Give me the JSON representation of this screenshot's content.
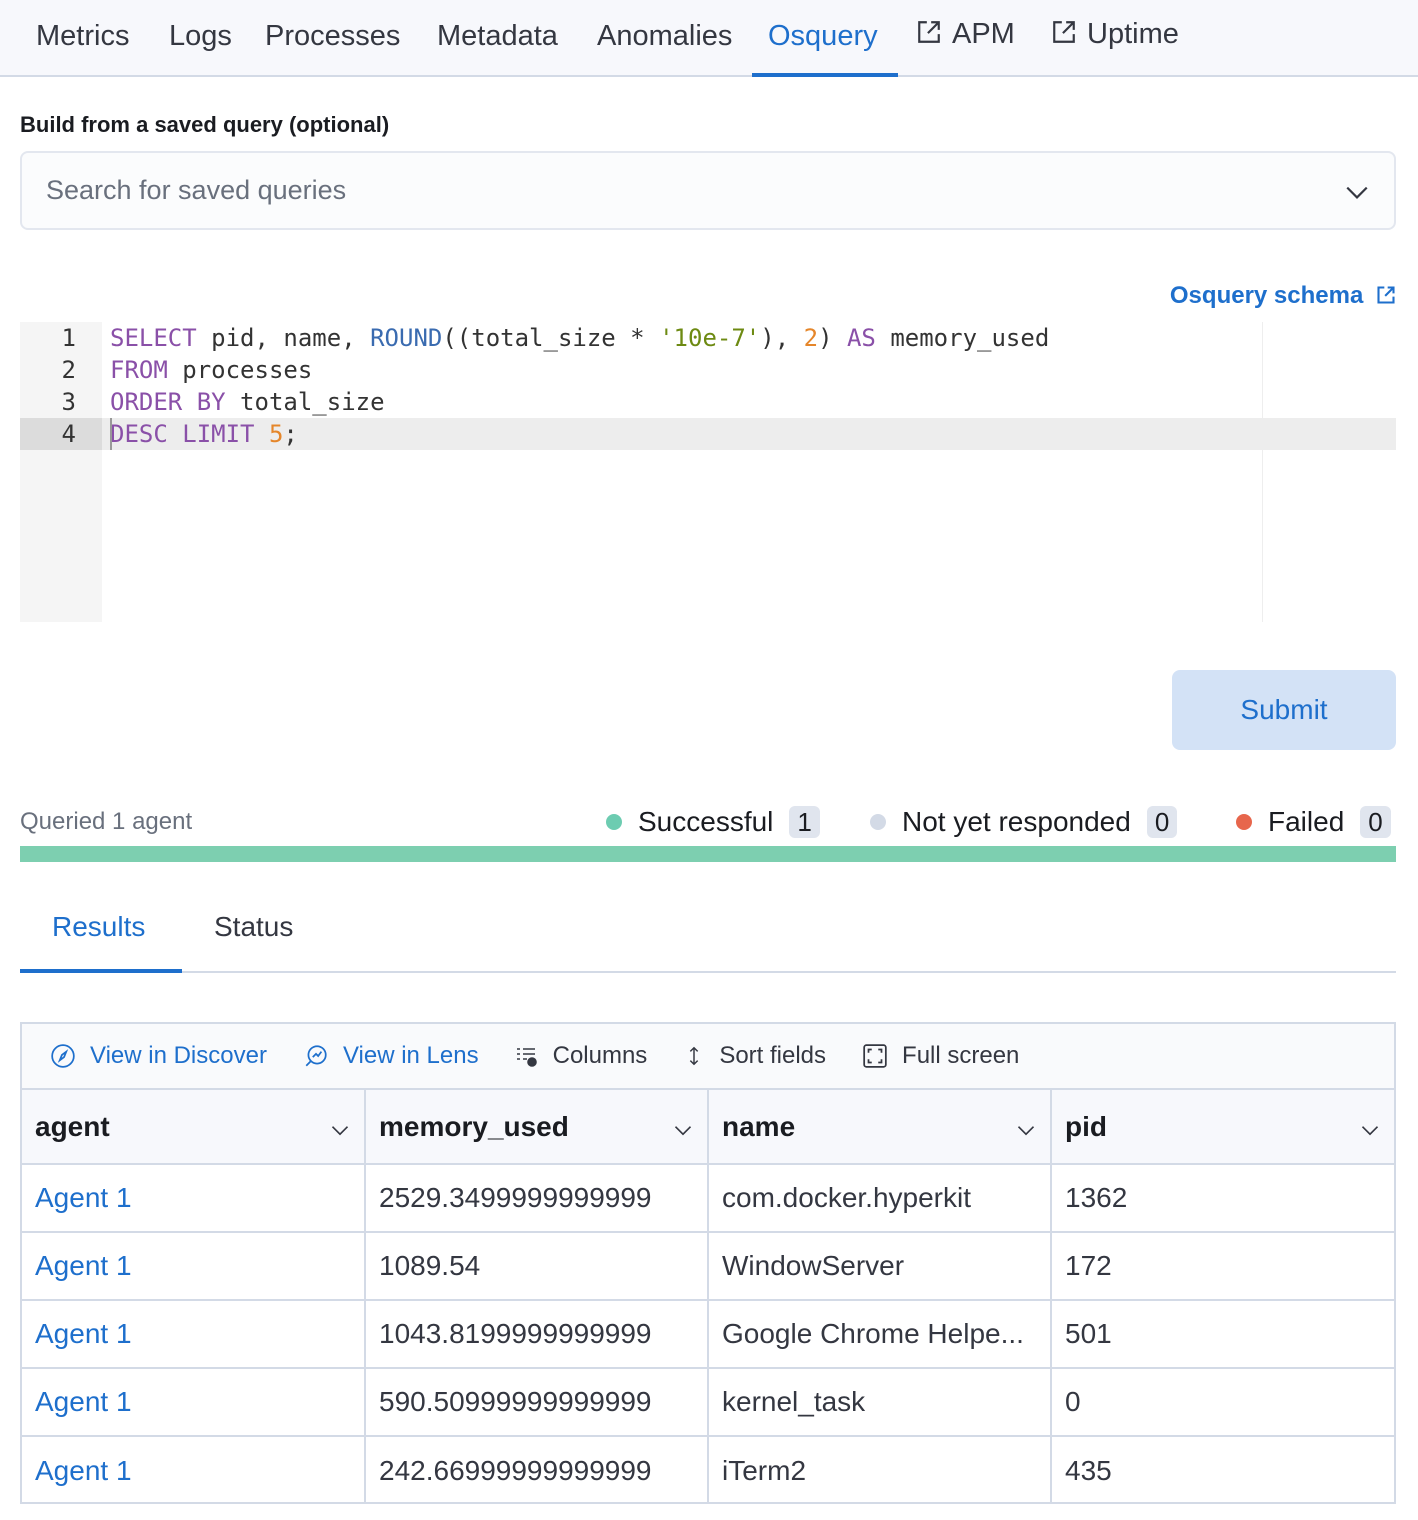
{
  "nav": {
    "tabs": [
      "Metrics",
      "Logs",
      "Processes",
      "Metadata",
      "Anomalies",
      "Osquery",
      "APM",
      "Uptime"
    ],
    "active": "Osquery"
  },
  "saved_query": {
    "label": "Build from a saved query (optional)",
    "placeholder": "Search for saved queries"
  },
  "schema_link": "Osquery schema",
  "editor": {
    "lines": [
      {
        "num": "1",
        "text": "SELECT pid, name, ROUND((total_size * '10e-7'), 2) AS memory_used"
      },
      {
        "num": "2",
        "text": "FROM processes"
      },
      {
        "num": "3",
        "text": "ORDER BY total_size"
      },
      {
        "num": "4",
        "text": "DESC LIMIT 5;"
      }
    ],
    "active_line": 4
  },
  "submit": "Submit",
  "status": {
    "queried": "Queried 1 agent",
    "successful": {
      "label": "Successful",
      "count": "1",
      "color": "#6dccb1"
    },
    "pending": {
      "label": "Not yet responded",
      "count": "0",
      "color": "#d3dae6"
    },
    "failed": {
      "label": "Failed",
      "count": "0",
      "color": "#e7664c"
    },
    "progress_percent": 100
  },
  "results_tabs": [
    "Results",
    "Status"
  ],
  "toolbar": {
    "discover": "View in Discover",
    "lens": "View in Lens",
    "columns": "Columns",
    "sort": "Sort fields",
    "fullscreen": "Full screen"
  },
  "table": {
    "columns": [
      "agent",
      "memory_used",
      "name",
      "pid"
    ],
    "rows": [
      [
        "Agent 1",
        "2529.3499999999999",
        "com.docker.hyperkit",
        "1362"
      ],
      [
        "Agent 1",
        "1089.54",
        "WindowServer",
        "172"
      ],
      [
        "Agent 1",
        "1043.8199999999999",
        "Google Chrome Helpe...",
        "501"
      ],
      [
        "Agent 1",
        "590.50999999999999",
        "kernel_task",
        "0"
      ],
      [
        "Agent 1",
        "242.66999999999999",
        "iTerm2",
        "435"
      ]
    ]
  }
}
